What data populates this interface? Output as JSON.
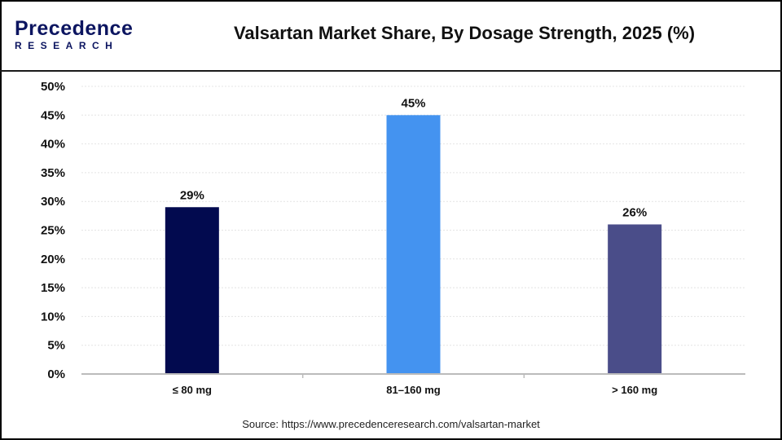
{
  "header": {
    "logo_line1": "Precedence",
    "logo_line2": "RESEARCH",
    "title": "Valsartan Market Share, By Dosage Strength, 2025 (%)"
  },
  "source": "Source: https://www.precedenceresearch.com/valsartan-market",
  "chart_data": {
    "type": "bar",
    "title": "Valsartan Market Share, By Dosage Strength, 2025 (%)",
    "categories": [
      "≤ 80 mg",
      "81–160 mg",
      "> 160 mg"
    ],
    "values": [
      29,
      45,
      26
    ],
    "data_labels": [
      "29%",
      "45%",
      "26%"
    ],
    "colors": [
      "#020a4f",
      "#4493f0",
      "#4a4d89"
    ],
    "ylim": [
      0,
      50
    ],
    "yticks": [
      "0%",
      "5%",
      "10%",
      "15%",
      "20%",
      "25%",
      "30%",
      "35%",
      "40%",
      "45%",
      "50%"
    ],
    "grid": true,
    "xlabel": "",
    "ylabel": ""
  }
}
